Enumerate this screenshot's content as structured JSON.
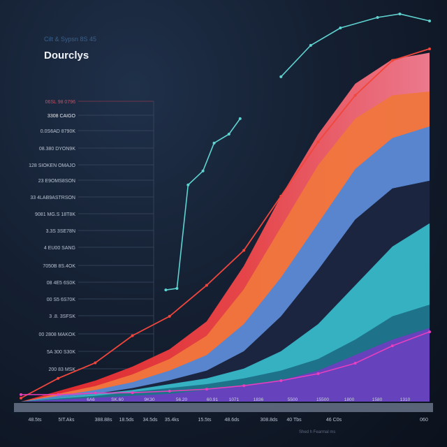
{
  "header": {
    "subtitle": "Cilt & Sypsn 8S 45",
    "title": "Dourclys"
  },
  "watermark": "Shed h Fearmal ms",
  "chart_data": {
    "type": "area",
    "title": "Dourclys",
    "subtitle": "Cilt & Sypsn 8S 45",
    "y_tick_labels": [
      "06SL 98 0796",
      "3308 CAIGO",
      "0.0S6AD 8790K",
      "08.380 DYON9K",
      "128 SIOKEN OMAJO",
      "23 E9OMS8SON",
      "33 4LAB9ASTRSON",
      "9081 MG.S 18T8K",
      "3.3S 3SE78N",
      "4 EU00 SANG",
      "7050B 8S.4OK",
      "08 4E5 6S0K",
      "00 S5 6S70K",
      "3 .8. 3SFSK",
      "00 2808 MAKOK",
      "5A 300 S30K",
      "200 83 MSK"
    ],
    "x_tick_labels": [
      "48.5ts",
      "5IT.Aks",
      "388.88s",
      "18.5ds",
      "34.5ds",
      "35.4ks",
      "15.5ts",
      "48.6ds",
      "308.8ds",
      "40 Tbs",
      "46 C0s",
      "060"
    ],
    "inner_x_labels": [
      "6A6",
      "SK.60",
      "9K30",
      "56.20",
      "60.91",
      "1071",
      "1836",
      "5500",
      "15500",
      "1800",
      "1580",
      "1310"
    ],
    "ylim": [
      0,
      100
    ],
    "grid": true,
    "series": [
      {
        "color": "#f26f86",
        "values": [
          0,
          2.7,
          5.4,
          9,
          13.5,
          20.7,
          35,
          53,
          69,
          82,
          88.3,
          90
        ]
      },
      {
        "color": "#f0763d",
        "values": [
          0,
          2,
          4,
          7,
          11,
          17,
          29,
          45,
          61,
          73,
          79,
          80
        ]
      },
      {
        "color": "#4f86d6",
        "values": [
          0,
          1.5,
          3,
          5,
          8,
          12,
          20,
          32,
          46,
          60,
          68,
          71
        ]
      },
      {
        "color": "#1b2540",
        "values": [
          0,
          1,
          2,
          3.5,
          5.5,
          8,
          13,
          22,
          34,
          47,
          55,
          57
        ]
      },
      {
        "color": "#37b8c9",
        "values": [
          0,
          1,
          2,
          3,
          4.5,
          6,
          8.5,
          13,
          20,
          30,
          40,
          46
        ]
      },
      {
        "color": "#1d6f86",
        "values": [
          0,
          0.8,
          1.5,
          2.5,
          3.5,
          4.5,
          6,
          8,
          11,
          16,
          22,
          25
        ]
      },
      {
        "color": "#6b3fc0",
        "values": [
          0,
          0.5,
          1,
          1.5,
          2,
          3,
          4,
          5.5,
          8,
          12,
          16,
          19
        ]
      }
    ],
    "lines": [
      {
        "color": "#f0463c",
        "points": [
          [
            0,
            0.9
          ],
          [
            1,
            6
          ],
          [
            2,
            10
          ],
          [
            3,
            17
          ],
          [
            4,
            22
          ],
          [
            5,
            30
          ],
          [
            6,
            39
          ],
          [
            7,
            53
          ],
          [
            8,
            67
          ],
          [
            9,
            79
          ],
          [
            10,
            88
          ],
          [
            11,
            91
          ]
        ]
      },
      {
        "color": "#e83fbf",
        "points": [
          [
            0,
            1.8
          ],
          [
            1,
            1.8
          ],
          [
            2,
            2.2
          ],
          [
            3,
            2.3
          ],
          [
            4,
            2.7
          ],
          [
            5,
            3.2
          ],
          [
            6,
            4.1
          ],
          [
            7,
            5.4
          ],
          [
            8,
            7.2
          ],
          [
            9,
            9.9
          ],
          [
            10,
            14.4
          ],
          [
            11,
            18
          ]
        ]
      },
      {
        "color": "#5fd3d0",
        "points": [
          [
            3.9,
            28.8
          ],
          [
            4.2,
            29.2
          ],
          [
            4.5,
            55.9
          ],
          [
            4.9,
            59.5
          ],
          [
            5.2,
            66.7
          ],
          [
            5.6,
            69
          ],
          [
            5.9,
            73
          ]
        ]
      },
      {
        "color": "#5fd3d0",
        "points": [
          [
            7.0,
            83.8
          ],
          [
            7.8,
            91.9
          ],
          [
            8.6,
            96.4
          ],
          [
            9.6,
            99.1
          ],
          [
            10.2,
            100
          ],
          [
            11,
            98.2
          ]
        ]
      }
    ]
  }
}
